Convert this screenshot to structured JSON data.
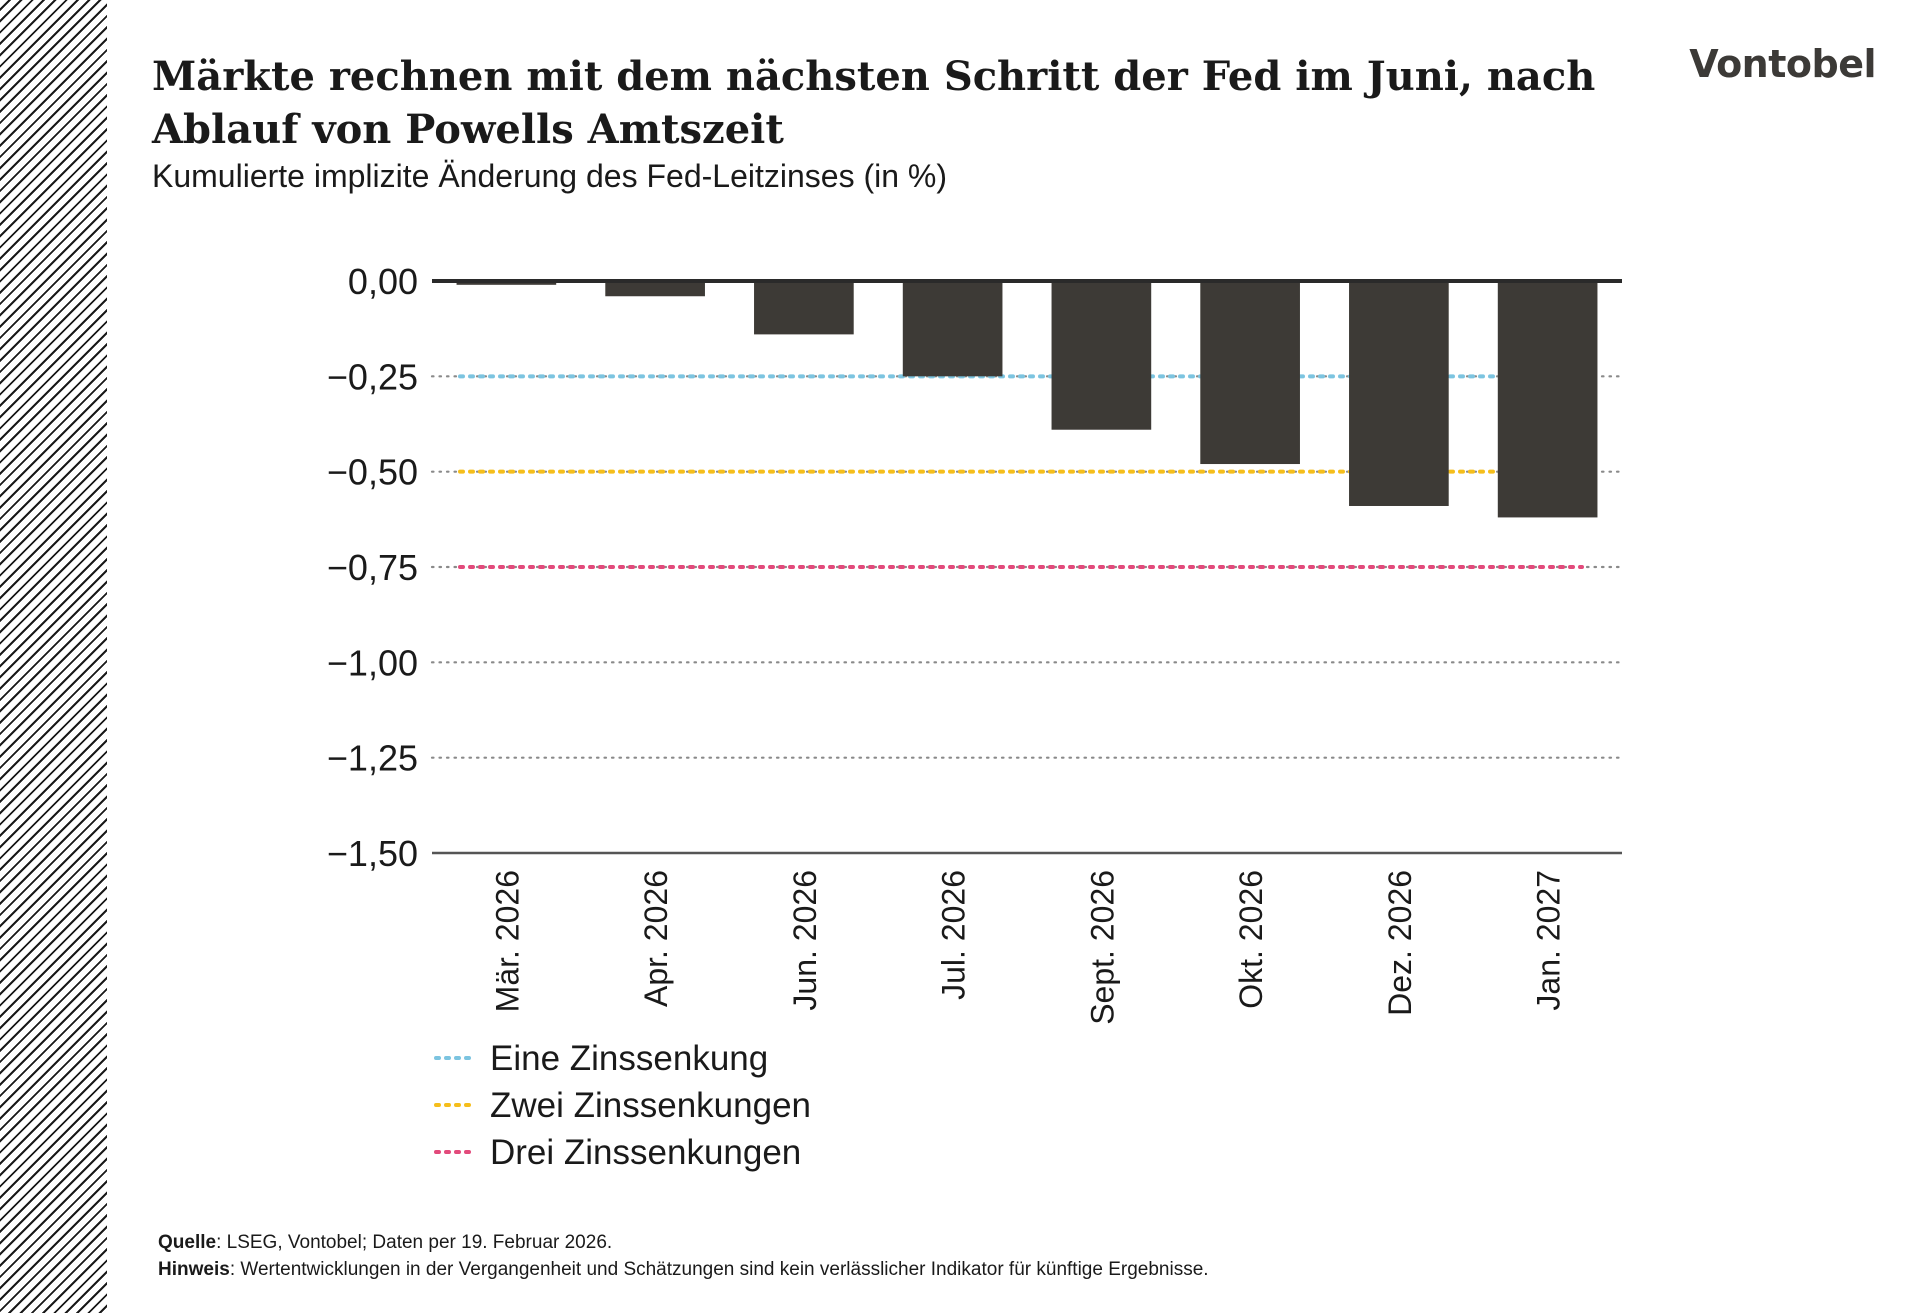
{
  "header": {
    "title": "Märkte rechnen mit dem nächsten Schritt der Fed im Juni, nach Ablauf von Powells Amtszeit",
    "subtitle": "Kumulierte implizite Änderung des Fed-Leitzinses (in %)",
    "logo": "Vontobel"
  },
  "chart_data": {
    "type": "bar",
    "categories": [
      "Mär. 2026",
      "Apr. 2026",
      "Jun. 2026",
      "Jul. 2026",
      "Sept. 2026",
      "Okt. 2026",
      "Dez. 2026",
      "Jan. 2027"
    ],
    "values": [
      -0.01,
      -0.04,
      -0.14,
      -0.25,
      -0.39,
      -0.48,
      -0.59,
      -0.62
    ],
    "bar_color": "#3d3a36",
    "ylim": [
      -1.5,
      0
    ],
    "yticks": [
      0,
      -0.25,
      -0.5,
      -0.75,
      -1.0,
      -1.25,
      -1.5
    ],
    "ytick_labels": [
      "0,00",
      "−0,25",
      "−0,50",
      "−0,75",
      "−1,00",
      "−1,25",
      "−1,50"
    ],
    "grid": true,
    "reference_lines": [
      {
        "name": "Eine Zinssenkung",
        "value": -0.25,
        "color": "#7cc4e0"
      },
      {
        "name": "Zwei Zinssenkungen",
        "value": -0.5,
        "color": "#f5be1b"
      },
      {
        "name": "Drei Zinssenkungen",
        "value": -0.75,
        "color": "#e24a7b"
      }
    ],
    "legend_position": "bottom-left"
  },
  "footer": {
    "source_label": "Quelle",
    "source_text": ": LSEG, Vontobel; Daten per 19. Februar 2026.",
    "note_label": "Hinweis",
    "note_text": ": Wertentwicklungen in der Vergangenheit und Schätzungen sind kein verlässlicher Indikator für künftige Ergebnisse."
  }
}
